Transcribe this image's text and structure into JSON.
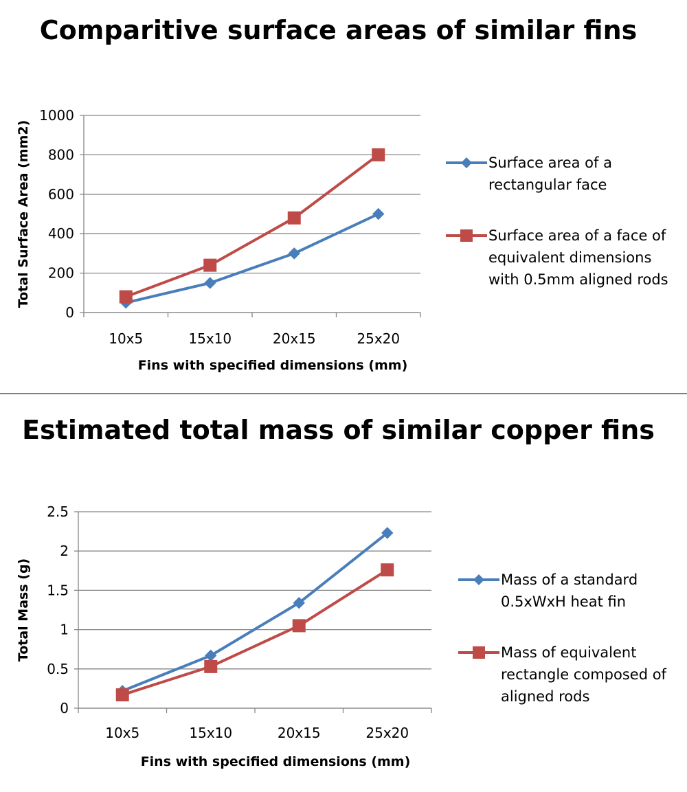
{
  "chart_data": [
    {
      "type": "line",
      "title": "Comparitive surface areas of similar fins",
      "xlabel": "Fins with specified dimensions (mm)",
      "ylabel": "Total Surface Area (mm2)",
      "categories": [
        "10x5",
        "15x10",
        "20x15",
        "25x20"
      ],
      "ylim": [
        0,
        1000
      ],
      "yticks": [
        "0",
        "200",
        "400",
        "600",
        "800",
        "1000"
      ],
      "grid": true,
      "legend_position": "right",
      "series": [
        {
          "name": "Surface area of a rectangular face",
          "values": [
            50,
            150,
            300,
            500
          ],
          "color": "#4a7ebb",
          "marker": "diamond"
        },
        {
          "name": "Surface area of a face of equivalent dimensions with 0.5mm aligned rods",
          "values": [
            80,
            240,
            480,
            800
          ],
          "color": "#be4b48",
          "marker": "square"
        }
      ]
    },
    {
      "type": "line",
      "title": "Estimated total mass of similar copper fins",
      "xlabel": "Fins with specified dimensions (mm)",
      "ylabel": "Total Mass (g)",
      "categories": [
        "10x5",
        "15x10",
        "20x15",
        "25x20"
      ],
      "ylim": [
        0,
        2.5
      ],
      "yticks": [
        "0",
        "0.5",
        "1",
        "1.5",
        "2",
        "2.5"
      ],
      "grid": true,
      "legend_position": "right",
      "series": [
        {
          "name": "Mass of a standard 0.5xWxH heat fin",
          "values": [
            0.22,
            0.67,
            1.34,
            2.23
          ],
          "color": "#4a7ebb",
          "marker": "diamond"
        },
        {
          "name": "Mass of equivalent rectangle composed of aligned rods",
          "values": [
            0.17,
            0.53,
            1.05,
            1.76
          ],
          "color": "#be4b48",
          "marker": "square"
        }
      ]
    }
  ]
}
